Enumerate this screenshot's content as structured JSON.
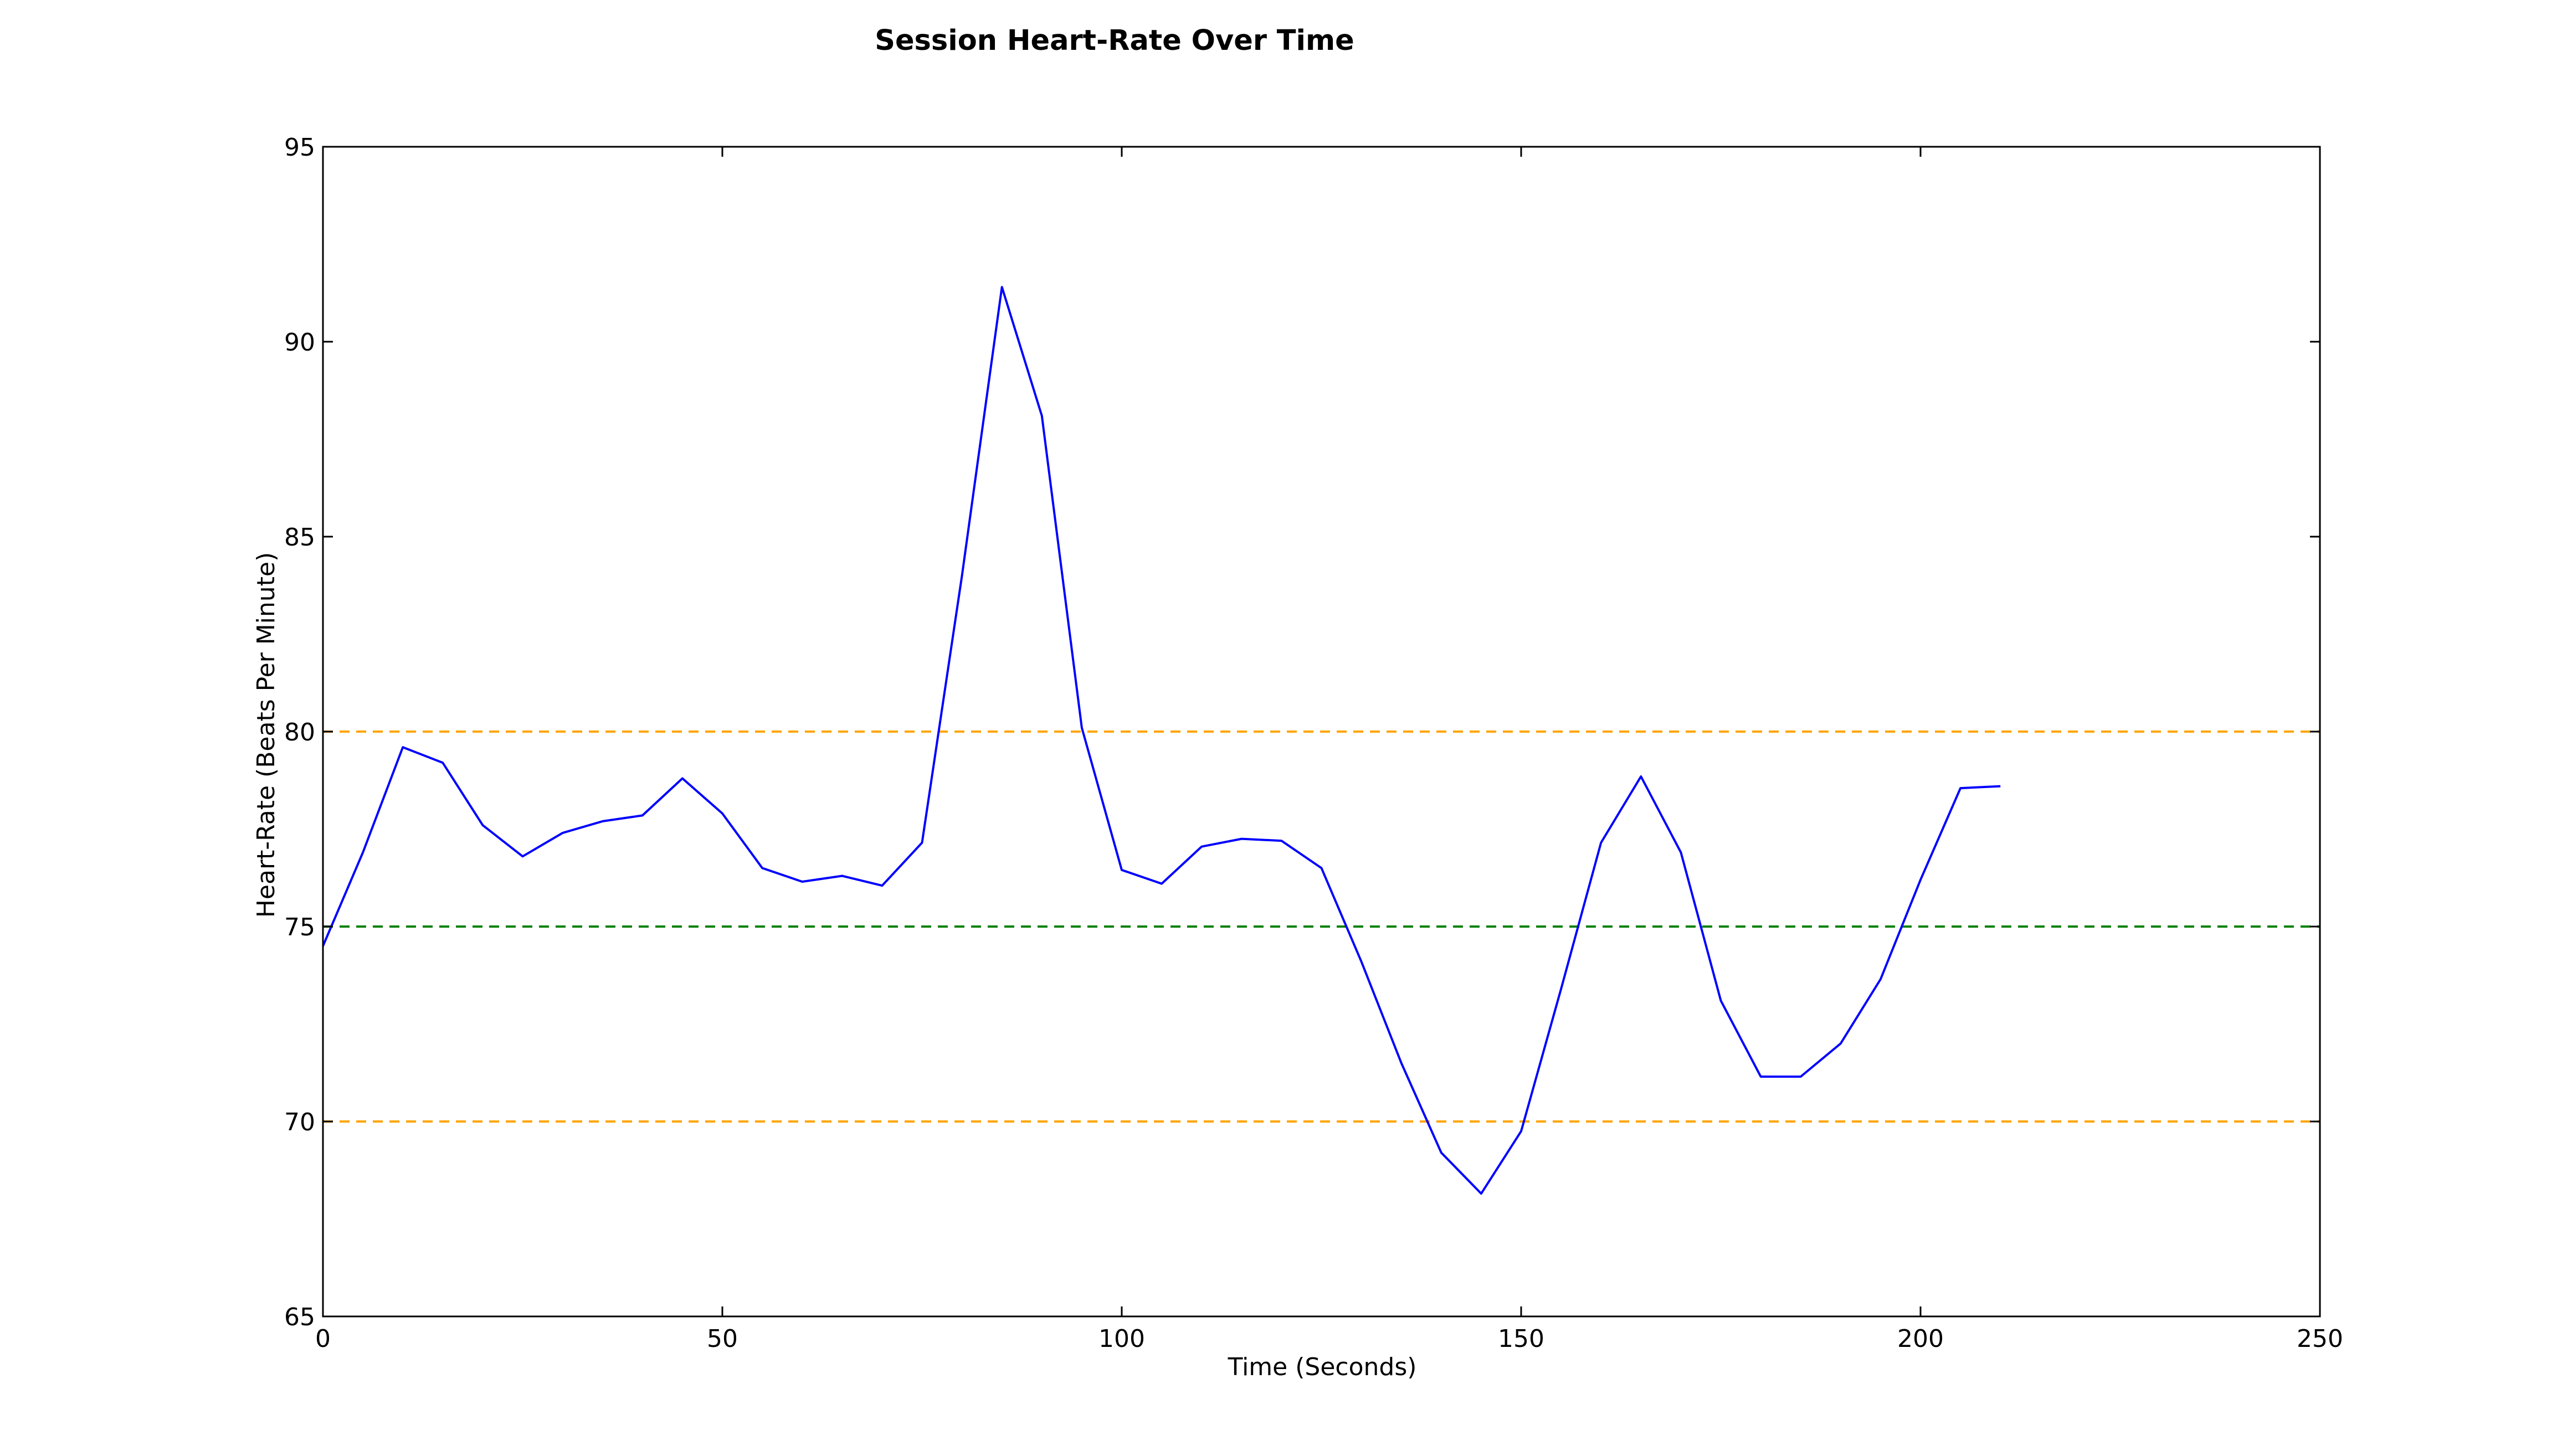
{
  "chart_data": {
    "type": "line",
    "title": "Session Heart-Rate Over Time",
    "xlabel": "Time (Seconds)",
    "ylabel": "Heart-Rate (Beats Per Minute)",
    "xlim": [
      0,
      250
    ],
    "ylim": [
      65,
      95
    ],
    "xticks": [
      0,
      50,
      100,
      150,
      200,
      250
    ],
    "yticks": [
      65,
      70,
      75,
      80,
      85,
      90,
      95
    ],
    "grid": false,
    "series": [
      {
        "color": "#0000ff",
        "x": [
          0,
          5,
          10,
          15,
          20,
          25,
          30,
          35,
          40,
          45,
          50,
          55,
          60,
          65,
          70,
          75,
          80,
          85,
          90,
          95,
          100,
          105,
          110,
          115,
          120,
          125,
          130,
          135,
          140,
          145,
          150,
          155,
          160,
          165,
          170,
          175,
          180,
          185,
          190,
          195,
          200,
          205,
          210
        ],
        "y": [
          74.5,
          76.9,
          79.6,
          79.2,
          77.6,
          76.8,
          77.4,
          77.7,
          77.85,
          78.8,
          77.9,
          76.5,
          76.15,
          76.3,
          76.05,
          77.15,
          84.0,
          91.4,
          88.1,
          80.1,
          76.45,
          76.1,
          77.05,
          77.25,
          77.2,
          76.5,
          74.1,
          71.5,
          69.2,
          68.15,
          69.75,
          73.4,
          77.15,
          78.85,
          76.9,
          73.1,
          71.15,
          71.15,
          72.0,
          73.65,
          76.2,
          78.55,
          78.6
        ]
      }
    ],
    "reference_lines": [
      {
        "y": 80,
        "color": "#ffa500",
        "style": "dashed"
      },
      {
        "y": 75,
        "color": "#008000",
        "style": "dashed"
      },
      {
        "y": 70,
        "color": "#ffa500",
        "style": "dashed"
      }
    ]
  }
}
